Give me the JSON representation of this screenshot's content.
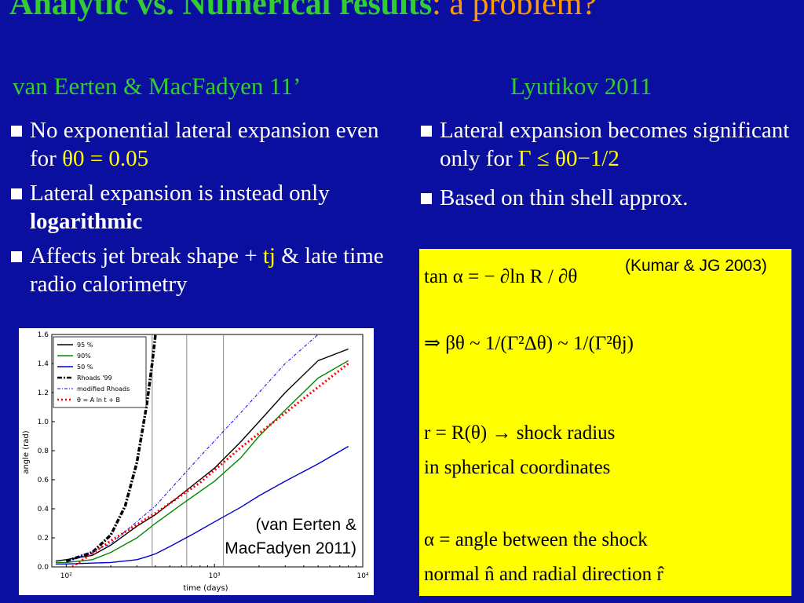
{
  "title": {
    "part1": "Analytic vs. Numerical results",
    "part2": ": a problem?"
  },
  "left": {
    "heading": "van Eerten & MacFadyen 11’",
    "bullet1": {
      "text": "No exponential lateral expansion even for",
      "math": "θ0 = 0.05"
    },
    "bullet2": {
      "text": "Lateral expansion is instead only",
      "bold": "logarithmic"
    },
    "bullet3": {
      "text": "Affects jet break shape +",
      "math": "tj",
      "tail": "& late time radio calorimetry"
    }
  },
  "right": {
    "heading": "Lyutikov 2011",
    "bullet1": {
      "text": "Lateral expansion becomes significant only for",
      "math": "Γ ≤ θ0−1/2"
    },
    "bullet2": {
      "text": "Based on thin shell approx."
    }
  },
  "formula_box": {
    "eq1": "tan α = − ∂ln R / ∂θ",
    "cite": "(Kumar & JG 2003)",
    "eq2": "⇒ βθ ~ 1/(Γ²Δθ) ~ 1/(Γ²θj)",
    "eq3": "r = R(θ)  → shock radius",
    "line4": "in spherical coordinates",
    "eq5": "α =  angle between the shock",
    "line6": "normal n̂ and radial direction r̂"
  },
  "plot": {
    "citation": "(van Eerten & MacFadyen 2011)",
    "xlabel": "time (days)",
    "ylabel": "angle (rad)",
    "x_ticks": [
      "10²",
      "10³",
      "10⁴"
    ],
    "y_ticks": [
      "0.0",
      "0.2",
      "0.4",
      "0.6",
      "0.8",
      "1.0",
      "1.2",
      "1.4",
      "1.6"
    ],
    "legend": [
      "95 %",
      "90%",
      "50 %",
      "Rhoads '99",
      "modified Rhoads",
      "θ = A ln t + B"
    ]
  },
  "chart_data": {
    "type": "line",
    "xlabel": "time (days)",
    "ylabel": "angle (rad)",
    "xscale": "log",
    "xlim": [
      80,
      10000
    ],
    "ylim": [
      0,
      1.6
    ],
    "vlines": [
      380,
      650,
      1150
    ],
    "series": [
      {
        "name": "95 %",
        "color": "#000000",
        "style": "solid",
        "x": [
          85,
          100,
          150,
          200,
          300,
          400,
          600,
          1000,
          1500,
          2000,
          3000,
          5000,
          8000
        ],
        "y": [
          0.04,
          0.05,
          0.08,
          0.15,
          0.28,
          0.36,
          0.5,
          0.68,
          0.86,
          1.0,
          1.2,
          1.42,
          1.5
        ]
      },
      {
        "name": "90%",
        "color": "#008800",
        "style": "solid",
        "x": [
          85,
          100,
          150,
          200,
          300,
          400,
          600,
          1000,
          1500,
          2000,
          3000,
          5000,
          8000
        ],
        "y": [
          0.03,
          0.03,
          0.05,
          0.1,
          0.2,
          0.3,
          0.43,
          0.59,
          0.75,
          0.9,
          1.08,
          1.3,
          1.42
        ]
      },
      {
        "name": "50 %",
        "color": "#0000cc",
        "style": "solid",
        "x": [
          85,
          100,
          200,
          300,
          350,
          400,
          500,
          700,
          1000,
          1500,
          2000,
          3000,
          5000,
          8000
        ],
        "y": [
          0.02,
          0.02,
          0.03,
          0.05,
          0.07,
          0.09,
          0.14,
          0.22,
          0.31,
          0.41,
          0.49,
          0.59,
          0.71,
          0.83
        ]
      },
      {
        "name": "Rhoads '99",
        "color": "#000000",
        "style": "dashdot-bold",
        "x": [
          100,
          150,
          200,
          250,
          300,
          350,
          380,
          400
        ],
        "y": [
          0.04,
          0.1,
          0.22,
          0.42,
          0.72,
          1.12,
          1.4,
          1.6
        ]
      },
      {
        "name": "modified Rhoads",
        "color": "#0000ff",
        "style": "dashdot",
        "x": [
          100,
          200,
          400,
          800,
          1500,
          3000,
          5000
        ],
        "y": [
          0.03,
          0.16,
          0.42,
          0.76,
          1.06,
          1.4,
          1.6
        ]
      },
      {
        "name": "θ = A ln t + B",
        "color": "#ff0000",
        "style": "dotted-bold",
        "x": [
          110,
          200,
          400,
          800,
          1500,
          3000,
          8000
        ],
        "y": [
          0.0,
          0.18,
          0.37,
          0.58,
          0.82,
          1.06,
          1.4
        ]
      }
    ]
  },
  "colors": {
    "background": "#0b0fa0",
    "accent_green": "#33cc33",
    "accent_orange": "#ff9900",
    "highlight_yellow": "#ffff00"
  }
}
